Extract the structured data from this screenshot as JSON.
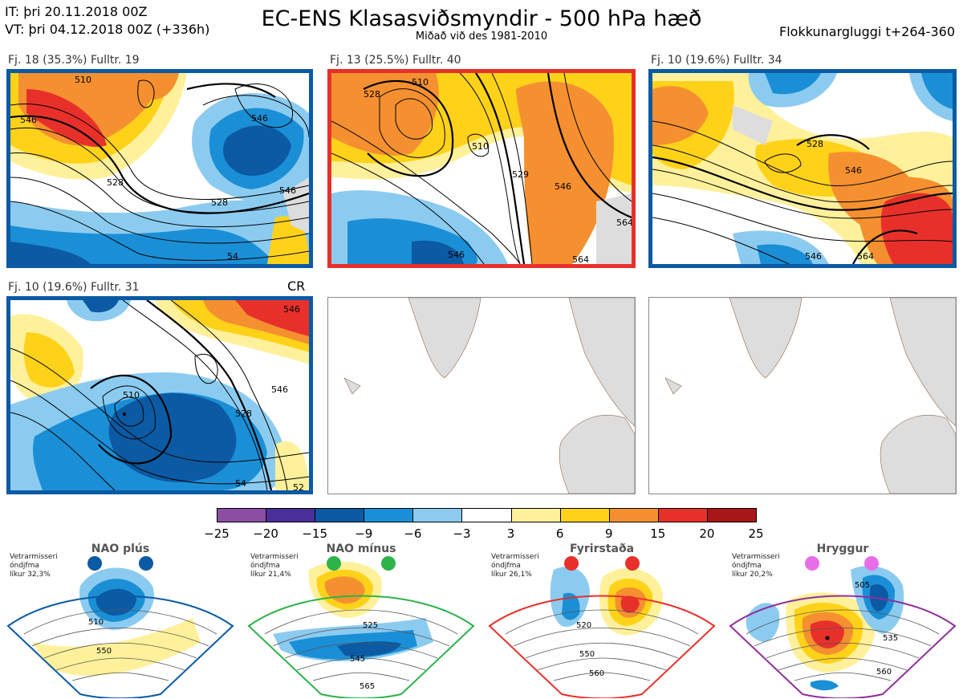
{
  "header": {
    "it_line": "IT: þri 20.11.2018 00Z",
    "vt_line": "VT: þri 04.12.2018 00Z  (+336h)",
    "title": "EC-ENS Klasasviðsmyndir - 500 hPa hæð",
    "subtitle": "Miðað við des 1981-2010",
    "window": "Flokkunargluggi t+264-360"
  },
  "panels": [
    {
      "label": "Fj. 18 (35.3%)   Fulltr. 19",
      "frame": "#0b5aa3",
      "contours": [
        "510",
        "546",
        "528",
        "528",
        "546",
        "546",
        "54"
      ]
    },
    {
      "label": "Fj. 13 (25.5%)   Fulltr. 40",
      "frame": "#e8302a",
      "contours": [
        "510",
        "528",
        "510",
        "529",
        "546",
        "546",
        "564",
        "564"
      ]
    },
    {
      "label": "Fj. 10 (19.6%)   Fulltr. 34",
      "frame": "#0b5aa3",
      "contours": [
        "528",
        "546",
        "546",
        "564"
      ]
    },
    {
      "label": "Fj. 10 (19.6%)   Fulltr. 31",
      "frame": "#0b5aa3",
      "contours": [
        "510",
        "528",
        "546",
        "546",
        "54",
        "52"
      ]
    }
  ],
  "cr_label": "CR",
  "colorbar": {
    "ticks": [
      "−25",
      "−20",
      "−15",
      "−9",
      "−6",
      "−3",
      "3",
      "6",
      "9",
      "15",
      "20",
      "25"
    ],
    "colors": [
      "#8b4ea3",
      "#4b2f99",
      "#0b5aa3",
      "#1a8fd6",
      "#8ccbf0",
      "#ffffff",
      "#fff19c",
      "#ffd21a",
      "#f59030",
      "#e8302a",
      "#a81717"
    ]
  },
  "regimes": [
    {
      "name": "NAO plús",
      "dot_color": "#0b5aa3",
      "edge": "#0b5aa3",
      "note": [
        "Vetrarmisseri",
        "óndjfma",
        "líkur 32,3%"
      ],
      "contours": [
        "510",
        "550"
      ]
    },
    {
      "name": "NAO mínus",
      "dot_color": "#2db34a",
      "edge": "#2db34a",
      "note": [
        "Vetrarmisseri",
        "óndjfma",
        "líkur 21,4%"
      ],
      "contours": [
        "525",
        "545",
        "565"
      ]
    },
    {
      "name": "Fyrirstaða",
      "dot_color": "#e8302a",
      "edge": "#e8302a",
      "note": [
        "Vetrarmisseri",
        "óndjfma",
        "líkur 26,1%"
      ],
      "contours": [
        "520",
        "550",
        "560"
      ]
    },
    {
      "name": "Hryggur",
      "dot_color": "#e86ee8",
      "edge": "#8e2f9c",
      "note": [
        "Vetrarmisseri",
        "óndjfma",
        "líkur 20,2%"
      ],
      "contours": [
        "505",
        "535",
        "560"
      ]
    }
  ]
}
